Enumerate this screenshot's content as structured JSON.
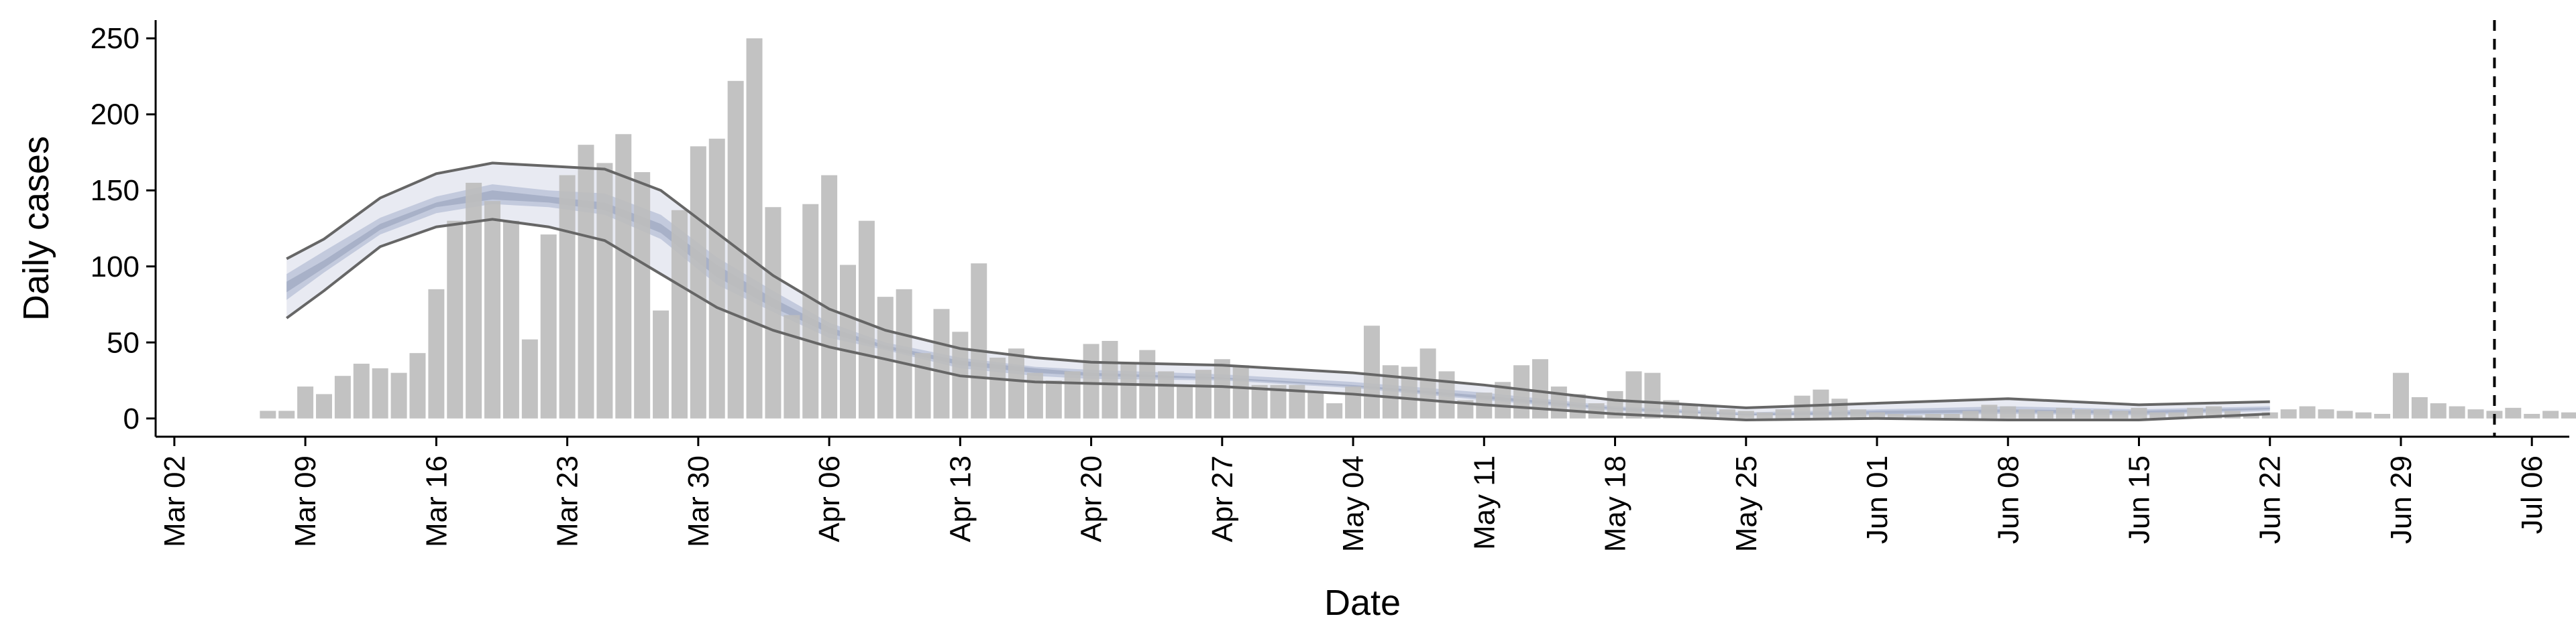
{
  "chart_data": {
    "type": "bar",
    "title": "",
    "xlabel": "Date",
    "ylabel": "Daily cases",
    "ylim": [
      -12,
      262
    ],
    "yticks": [
      0,
      50,
      100,
      150,
      200,
      250
    ],
    "xlim": [
      "2020-03-01",
      "2020-07-08"
    ],
    "xticks": [
      "2020-03-02",
      "2020-03-09",
      "2020-03-16",
      "2020-03-23",
      "2020-03-30",
      "2020-04-06",
      "2020-04-13",
      "2020-04-20",
      "2020-04-27",
      "2020-05-04",
      "2020-05-11",
      "2020-05-18",
      "2020-05-25",
      "2020-06-01",
      "2020-06-08",
      "2020-06-15",
      "2020-06-22",
      "2020-06-29",
      "2020-07-06"
    ],
    "xtick_labels": [
      "Mar 02",
      "Mar 09",
      "Mar 16",
      "Mar 23",
      "Mar 30",
      "Apr 06",
      "Apr 13",
      "Apr 20",
      "Apr 27",
      "May 04",
      "May 11",
      "May 18",
      "May 25",
      "Jun 01",
      "Jun 08",
      "Jun 15",
      "Jun 22",
      "Jun 29",
      "Jul 06"
    ],
    "grid": false,
    "bar_start_date": "2020-03-07",
    "bar_values": [
      5,
      5,
      21,
      16,
      28,
      36,
      33,
      30,
      43,
      85,
      130,
      155,
      143,
      130,
      52,
      121,
      160,
      180,
      168,
      187,
      162,
      71,
      137,
      179,
      184,
      222,
      250,
      139,
      68,
      141,
      160,
      101,
      130,
      80,
      85,
      43,
      72,
      57,
      102,
      40,
      46,
      30,
      25,
      31,
      49,
      51,
      36,
      45,
      31,
      22,
      32,
      39,
      35,
      22,
      22,
      22,
      18,
      10,
      21,
      61,
      35,
      34,
      46,
      31,
      12,
      17,
      24,
      35,
      39,
      21,
      16,
      10,
      18,
      31,
      30,
      12,
      9,
      8,
      6,
      5,
      4,
      6,
      15,
      19,
      13,
      6,
      4,
      3,
      2,
      3,
      3,
      5,
      9,
      8,
      6,
      5,
      7,
      6,
      6,
      5,
      7,
      4,
      4,
      7,
      8,
      5,
      2,
      4,
      6,
      8,
      6,
      5,
      4,
      3,
      30,
      14,
      10,
      8,
      6,
      5,
      7,
      3,
      5,
      4,
      2,
      2,
      3,
      4,
      3,
      4,
      2
    ],
    "vline_date": "2020-07-04",
    "bar_color": "#bdbdbd",
    "ribbon_outer_color": "#e8eaf2",
    "ribbon_mid_color": "#c3cadd",
    "ribbon_inner_color": "#a8b1c8",
    "line_color": "#666666",
    "ribbon_start_date": "2020-03-08",
    "ribbon_end_date": "2020-06-22",
    "band_knots_x": [
      "2020-03-08",
      "2020-03-10",
      "2020-03-13",
      "2020-03-16",
      "2020-03-19",
      "2020-03-22",
      "2020-03-25",
      "2020-03-28",
      "2020-03-31",
      "2020-04-03",
      "2020-04-06",
      "2020-04-09",
      "2020-04-13",
      "2020-04-17",
      "2020-04-20",
      "2020-04-27",
      "2020-05-04",
      "2020-05-11",
      "2020-05-18",
      "2020-05-25",
      "2020-06-01",
      "2020-06-08",
      "2020-06-15",
      "2020-06-22"
    ],
    "band_upper": [
      105,
      118,
      145,
      161,
      168,
      166,
      164,
      150,
      122,
      94,
      72,
      58,
      46,
      40,
      37,
      35,
      30,
      22,
      12,
      7,
      10,
      13,
      9,
      11
    ],
    "band_lower": [
      66,
      84,
      113,
      126,
      131,
      126,
      117,
      95,
      73,
      58,
      47,
      39,
      28,
      24,
      23,
      21,
      16,
      9,
      3,
      -1,
      0,
      -1,
      -1,
      3
    ],
    "band_mid_upper": [
      95,
      110,
      132,
      146,
      154,
      150,
      148,
      134,
      106,
      84,
      63,
      50,
      40,
      34,
      32,
      29,
      24,
      17,
      8,
      4,
      6,
      8,
      6,
      8
    ],
    "band_mid_lower": [
      78,
      96,
      121,
      135,
      141,
      139,
      134,
      118,
      88,
      70,
      53,
      45,
      33,
      28,
      26,
      25,
      20,
      12,
      5,
      2,
      2,
      3,
      2,
      5
    ],
    "band_inner_upper": [
      90,
      104,
      128,
      142,
      150,
      146,
      142,
      128,
      101,
      79,
      60,
      48,
      38,
      33,
      30,
      27,
      22,
      15,
      7,
      3,
      5,
      6,
      5,
      7
    ],
    "band_inner_lower": [
      83,
      99,
      124,
      139,
      144,
      142,
      137,
      122,
      93,
      73,
      56,
      46,
      35,
      30,
      28,
      26,
      21,
      13,
      6,
      2,
      3,
      4,
      3,
      6
    ]
  }
}
